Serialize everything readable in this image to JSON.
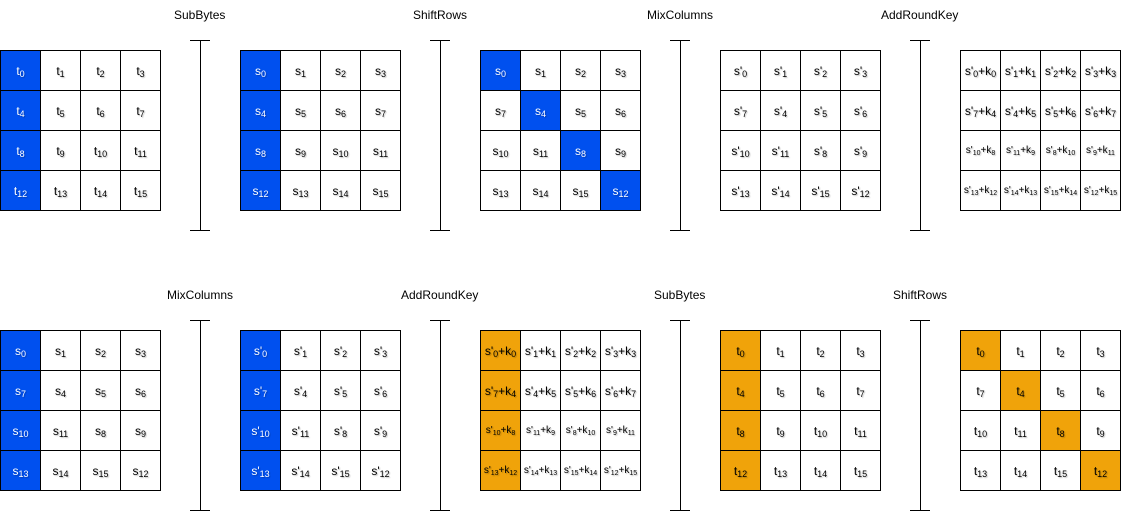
{
  "labels": {
    "top": [
      "SubBytes",
      "ShiftRows",
      "MixColumns",
      "AddRoundKey"
    ],
    "bottom": [
      "MixColumns",
      "AddRoundKey",
      "SubBytes",
      "ShiftRows"
    ]
  },
  "colors": {
    "blue": "#0050ef",
    "orange": "#f0a30a"
  },
  "grids": [
    {
      "name": "top-grid-1",
      "highlight": "blue",
      "cells": [
        [
          "t_0",
          "t_1",
          "t_2",
          "t_3"
        ],
        [
          "t_4",
          "t_5",
          "t_6",
          "t_7"
        ],
        [
          "t_8",
          "t_9",
          "t_10",
          "t_11"
        ],
        [
          "t_12",
          "t_13",
          "t_14",
          "t_15"
        ]
      ],
      "highlighted": [
        [
          0,
          0
        ],
        [
          1,
          0
        ],
        [
          2,
          0
        ],
        [
          3,
          0
        ]
      ]
    },
    {
      "name": "top-grid-2",
      "highlight": "blue",
      "cells": [
        [
          "s_0",
          "s_1",
          "s_2",
          "s_3"
        ],
        [
          "s_4",
          "s_5",
          "s_6",
          "s_7"
        ],
        [
          "s_8",
          "s_9",
          "s_10",
          "s_11"
        ],
        [
          "s_12",
          "s_13",
          "s_14",
          "s_15"
        ]
      ],
      "highlighted": [
        [
          0,
          0
        ],
        [
          1,
          0
        ],
        [
          2,
          0
        ],
        [
          3,
          0
        ]
      ]
    },
    {
      "name": "top-grid-3",
      "highlight": "blue",
      "cells": [
        [
          "s_0",
          "s_1",
          "s_2",
          "s_3"
        ],
        [
          "s_7",
          "s_4",
          "s_5",
          "s_6"
        ],
        [
          "s_10",
          "s_11",
          "s_8",
          "s_9"
        ],
        [
          "s_13",
          "s_14",
          "s_15",
          "s_12"
        ]
      ],
      "highlighted": [
        [
          0,
          0
        ],
        [
          1,
          1
        ],
        [
          2,
          2
        ],
        [
          3,
          3
        ]
      ]
    },
    {
      "name": "top-grid-4",
      "highlight": "blue",
      "cells": [
        [
          "s'_0",
          "s'_1",
          "s'_2",
          "s'_3"
        ],
        [
          "s'_7",
          "s'_4",
          "s'_5",
          "s'_6"
        ],
        [
          "s'_10",
          "s'_11",
          "s'_8",
          "s'_9"
        ],
        [
          "s'_13",
          "s'_14",
          "s'_15",
          "s'_12"
        ]
      ],
      "highlighted": []
    },
    {
      "name": "top-grid-5",
      "highlight": "blue",
      "cells": [
        [
          "s'_0+k_0",
          "s'_1+k_1",
          "s'_2+k_2",
          "s'_3+k_3"
        ],
        [
          "s'_7+k_4",
          "s'_4+k_5",
          "s'_5+k_6",
          "s'_6+k_7"
        ],
        [
          "s'_10+k_8",
          "s'_11+k_9",
          "s'_8+k_10",
          "s'_9+k_11"
        ],
        [
          "s'_13+k_12",
          "s'_14+k_13",
          "s'_15+k_14",
          "s'_12+k_15"
        ]
      ],
      "highlighted": []
    },
    {
      "name": "bottom-grid-1",
      "highlight": "blue",
      "cells": [
        [
          "s_0",
          "s_1",
          "s_2",
          "s_3"
        ],
        [
          "s_7",
          "s_4",
          "s_5",
          "s_6"
        ],
        [
          "s_10",
          "s_11",
          "s_8",
          "s_9"
        ],
        [
          "s_13",
          "s_14",
          "s_15",
          "s_12"
        ]
      ],
      "highlighted": [
        [
          0,
          0
        ],
        [
          1,
          0
        ],
        [
          2,
          0
        ],
        [
          3,
          0
        ]
      ]
    },
    {
      "name": "bottom-grid-2",
      "highlight": "blue",
      "cells": [
        [
          "s'_0",
          "s'_1",
          "s'_2",
          "s'_3"
        ],
        [
          "s'_7",
          "s'_4",
          "s'_5",
          "s'_6"
        ],
        [
          "s'_10",
          "s'_11",
          "s'_8",
          "s'_9"
        ],
        [
          "s'_13",
          "s'_14",
          "s'_15",
          "s'_12"
        ]
      ],
      "highlighted": [
        [
          0,
          0
        ],
        [
          1,
          0
        ],
        [
          2,
          0
        ],
        [
          3,
          0
        ]
      ]
    },
    {
      "name": "bottom-grid-3",
      "highlight": "orange",
      "cells": [
        [
          "s'_0+k_0",
          "s'_1+k_1",
          "s'_2+k_2",
          "s'_3+k_3"
        ],
        [
          "s'_7+k_4",
          "s'_4+k_5",
          "s'_5+k_6",
          "s'_6+k_7"
        ],
        [
          "s'_10+k_8",
          "s'_11+k_9",
          "s'_8+k_10",
          "s'_9+k_11"
        ],
        [
          "s'_13+k_12",
          "s'_14+k_13",
          "s'_15+k_14",
          "s'_12+k_15"
        ]
      ],
      "highlighted": [
        [
          0,
          0
        ],
        [
          1,
          0
        ],
        [
          2,
          0
        ],
        [
          3,
          0
        ]
      ]
    },
    {
      "name": "bottom-grid-4",
      "highlight": "orange",
      "cells": [
        [
          "t_0",
          "t_1",
          "t_2",
          "t_3"
        ],
        [
          "t_4",
          "t_5",
          "t_6",
          "t_7"
        ],
        [
          "t_8",
          "t_9",
          "t_10",
          "t_11"
        ],
        [
          "t_12",
          "t_13",
          "t_14",
          "t_15"
        ]
      ],
      "highlighted": [
        [
          0,
          0
        ],
        [
          1,
          0
        ],
        [
          2,
          0
        ],
        [
          3,
          0
        ]
      ]
    },
    {
      "name": "bottom-grid-5",
      "highlight": "orange",
      "cells": [
        [
          "t_0",
          "t_1",
          "t_2",
          "t_3"
        ],
        [
          "t_7",
          "t_4",
          "t_5",
          "t_6"
        ],
        [
          "t_10",
          "t_11",
          "t_8",
          "t_9"
        ],
        [
          "t_13",
          "t_14",
          "t_15",
          "t_12"
        ]
      ],
      "highlighted": [
        [
          0,
          0
        ],
        [
          1,
          1
        ],
        [
          2,
          2
        ],
        [
          3,
          3
        ]
      ]
    }
  ]
}
